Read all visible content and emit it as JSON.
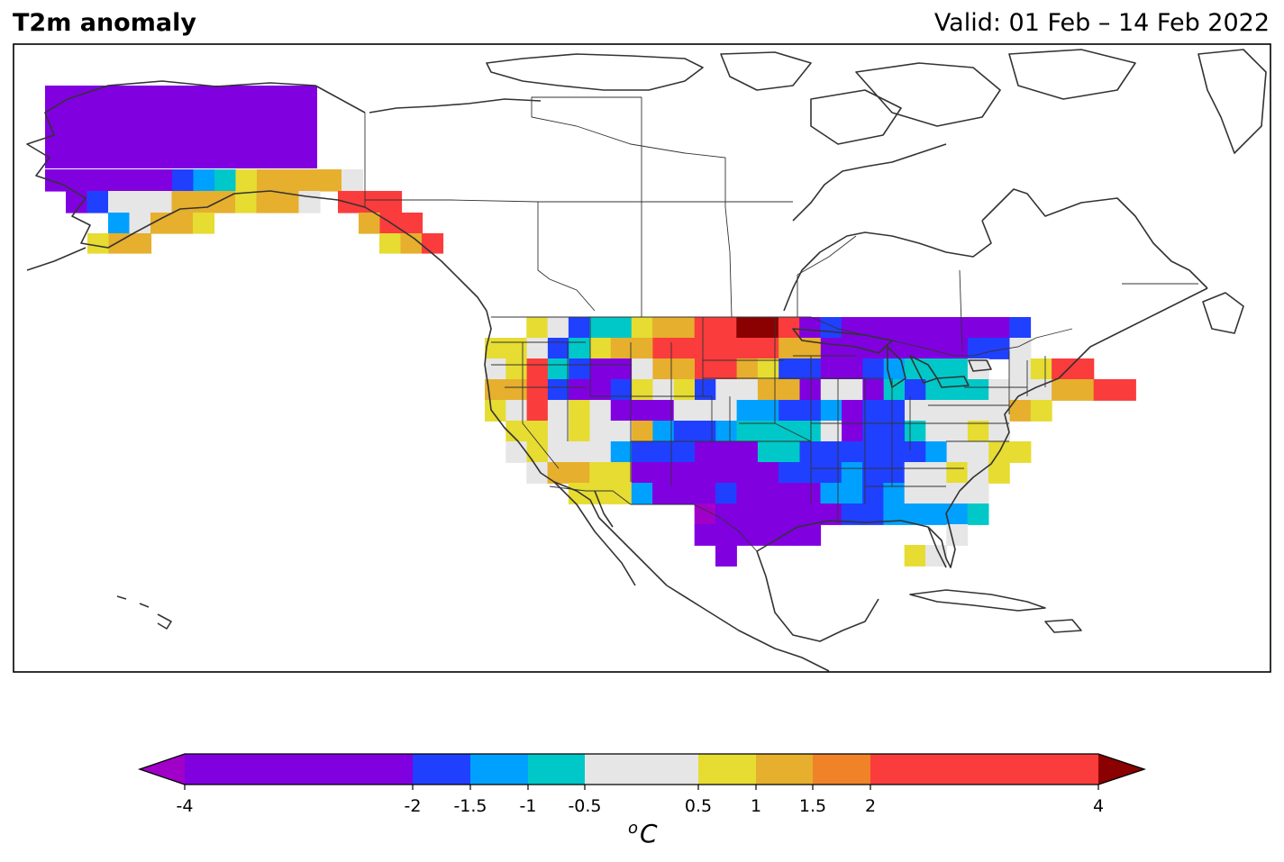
{
  "title": "T2m anomaly",
  "valid": "Valid: 01 Feb – 14 Feb 2022",
  "colorbar": {
    "ticks": [
      "-4",
      "-2",
      "-1.5",
      "-1",
      "-0.5",
      "0.5",
      "1",
      "1.5",
      "2",
      "4"
    ],
    "unit_base": "C",
    "unit_sup": "o",
    "bins": [
      {
        "from": -4,
        "to": -2,
        "color": "#8000e0"
      },
      {
        "from": -2,
        "to": -1.5,
        "color": "#2040ff"
      },
      {
        "from": -1.5,
        "to": -1,
        "color": "#00a0ff"
      },
      {
        "from": -1,
        "to": -0.5,
        "color": "#00c8c8"
      },
      {
        "from": -0.5,
        "to": 0.5,
        "color": "#e6e6e6"
      },
      {
        "from": 0.5,
        "to": 1,
        "color": "#e6dc32"
      },
      {
        "from": 1,
        "to": 1.5,
        "color": "#e6af2d"
      },
      {
        "from": 1.5,
        "to": 2,
        "color": "#f08228"
      },
      {
        "from": 2,
        "to": 4,
        "color": "#fa3c3c"
      }
    ],
    "under_color": "#a000c8",
    "over_color": "#8b0000"
  }
}
